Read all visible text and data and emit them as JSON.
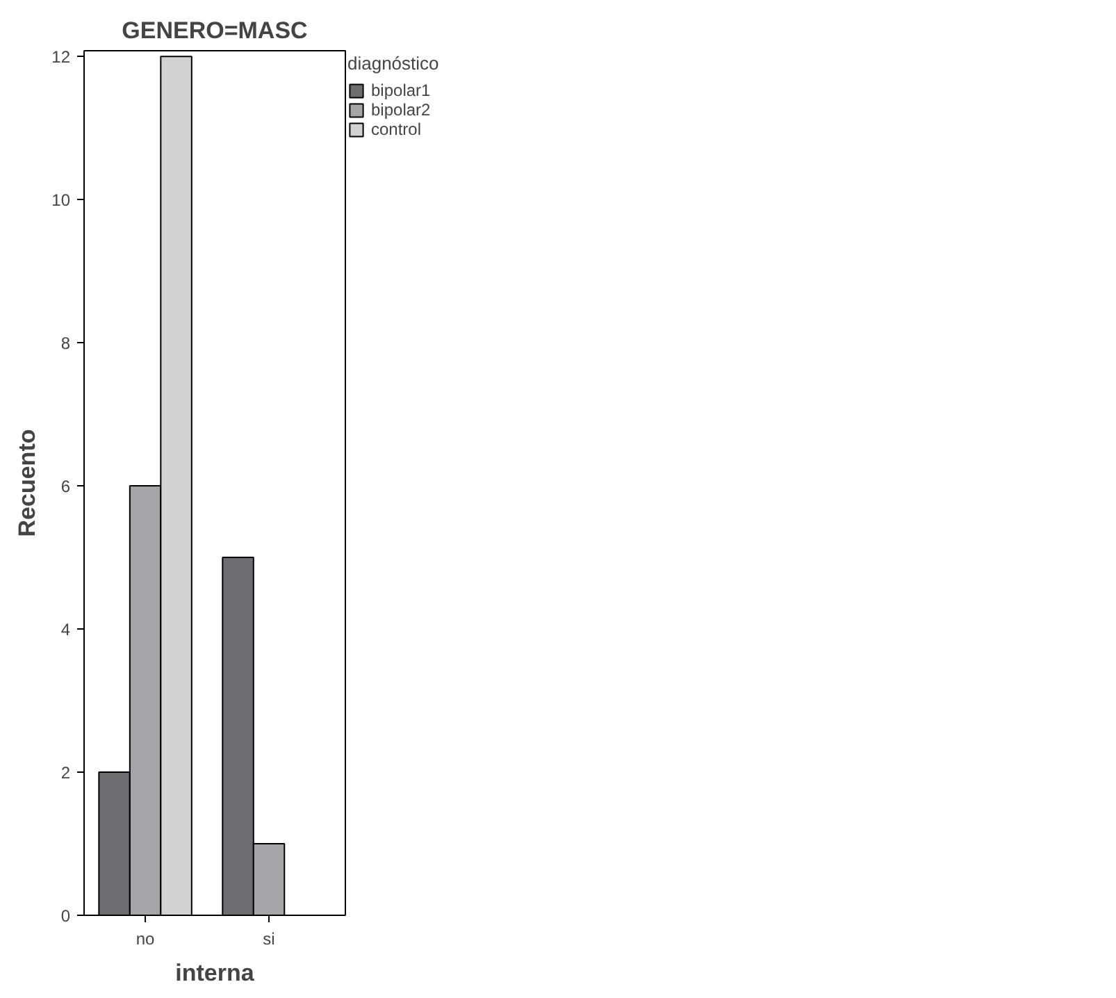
{
  "chart_data": {
    "type": "bar",
    "title": "GENERO=MASC",
    "xlabel": "interna",
    "ylabel": "Recuento",
    "legend_title": "diagnóstico",
    "categories": [
      "no",
      "si"
    ],
    "series": [
      {
        "name": "bipolar1",
        "color": "#6e6e72",
        "values": [
          2,
          5
        ]
      },
      {
        "name": "bipolar2",
        "color": "#a5a5a9",
        "values": [
          6,
          1
        ]
      },
      {
        "name": "control",
        "color": "#d2d2d4",
        "values": [
          12,
          null
        ]
      }
    ],
    "ylim": [
      0,
      12.08
    ],
    "yticks": [
      0,
      2,
      4,
      6,
      8,
      10,
      12
    ],
    "grid": false,
    "legend": "top right"
  }
}
